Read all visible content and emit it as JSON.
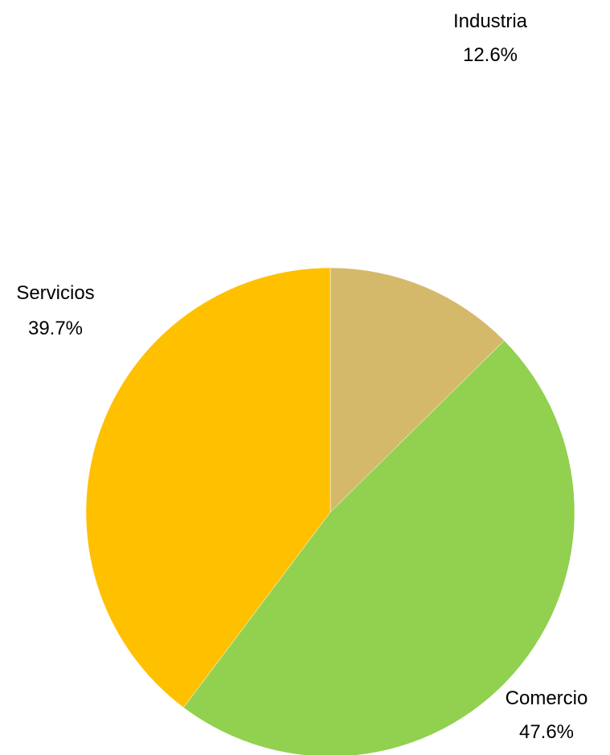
{
  "chart_data": {
    "type": "pie",
    "start_angle_deg": 0,
    "direction": "clockwise",
    "slices": [
      {
        "name": "Industria",
        "value": 12.6,
        "label": "12.6%",
        "color": "#D4B96A"
      },
      {
        "name": "Comercio",
        "value": 47.6,
        "label": "47.6%",
        "color": "#92D050"
      },
      {
        "name": "Servicios",
        "value": 39.7,
        "label": "39.7%",
        "color": "#FFC000"
      }
    ]
  }
}
